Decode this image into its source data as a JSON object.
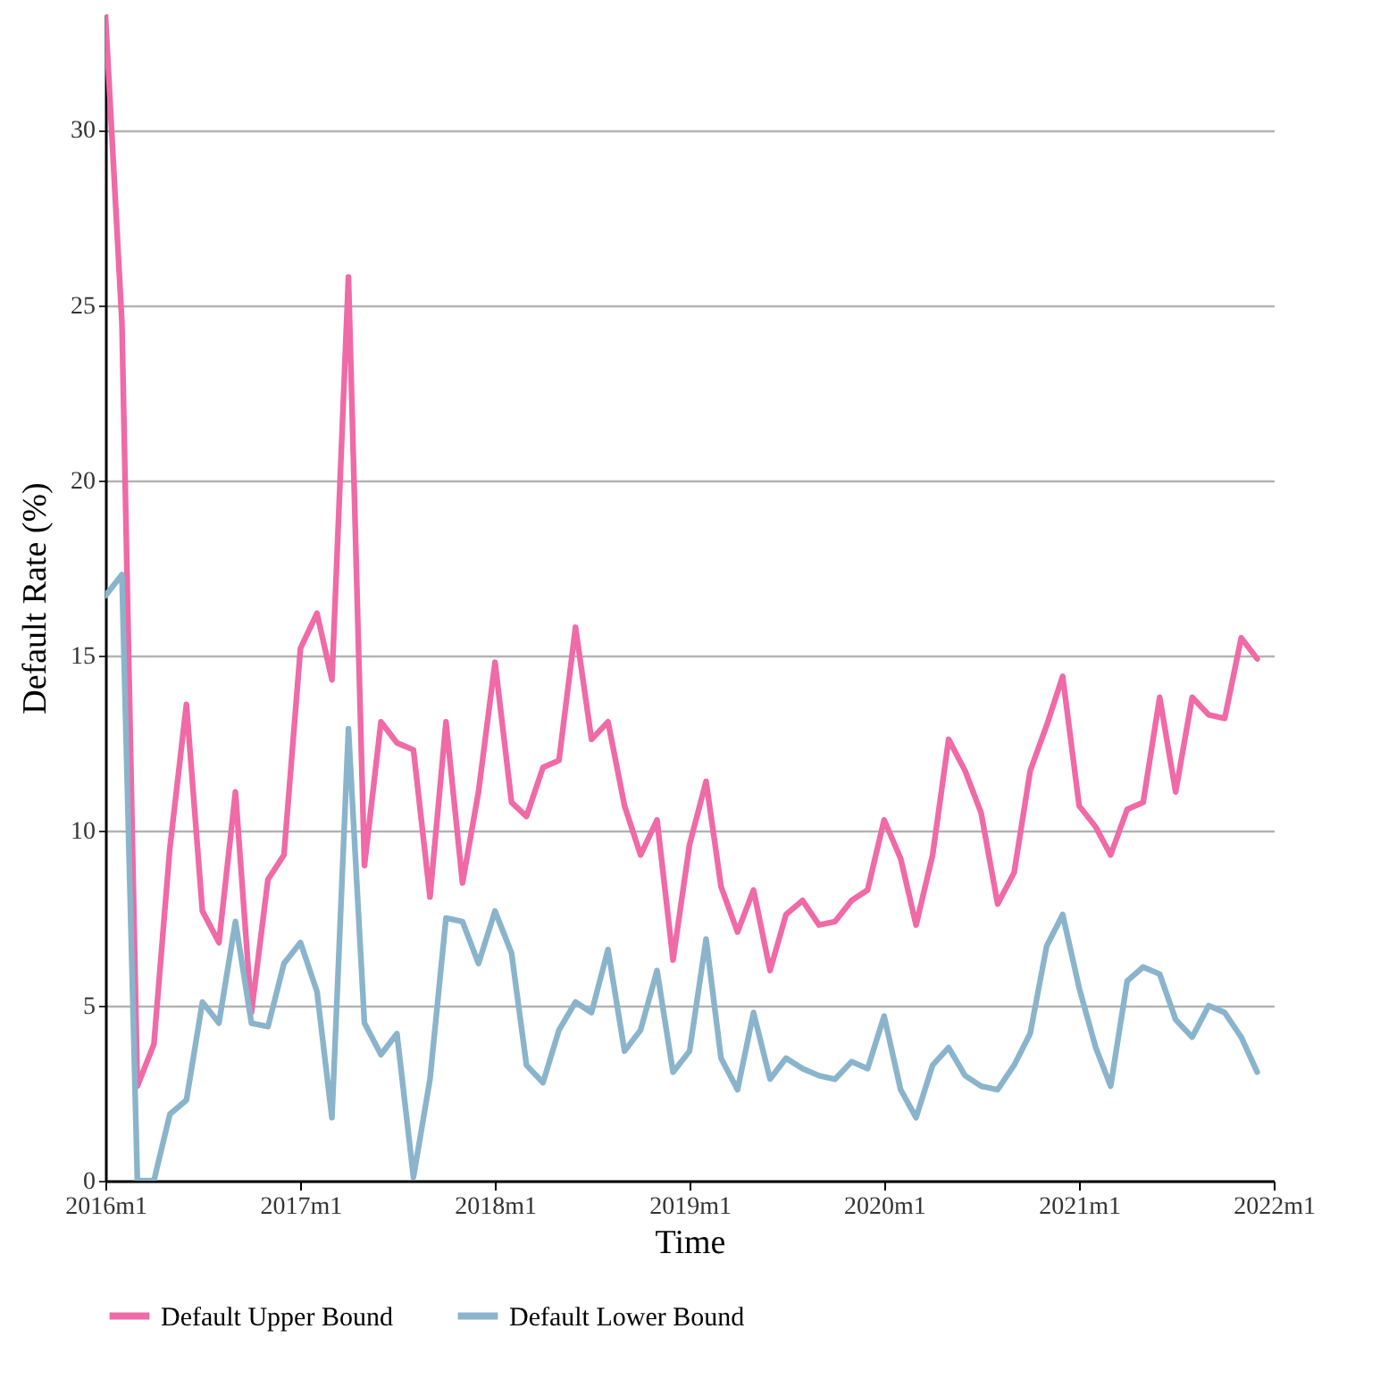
{
  "chart_data": {
    "type": "line",
    "xlabel": "Time",
    "ylabel": "Default Rate (%)",
    "x": [
      "2016-01",
      "2016-02",
      "2016-03",
      "2016-04",
      "2016-05",
      "2016-06",
      "2016-07",
      "2016-08",
      "2016-09",
      "2016-10",
      "2016-11",
      "2016-12",
      "2017-01",
      "2017-02",
      "2017-03",
      "2017-04",
      "2017-05",
      "2017-06",
      "2017-07",
      "2017-08",
      "2017-09",
      "2017-10",
      "2017-11",
      "2017-12",
      "2018-01",
      "2018-02",
      "2018-03",
      "2018-04",
      "2018-05",
      "2018-06",
      "2018-07",
      "2018-08",
      "2018-09",
      "2018-10",
      "2018-11",
      "2018-12",
      "2019-01",
      "2019-02",
      "2019-03",
      "2019-04",
      "2019-05",
      "2019-06",
      "2019-07",
      "2019-08",
      "2019-09",
      "2019-10",
      "2019-11",
      "2019-12",
      "2020-01",
      "2020-02",
      "2020-03",
      "2020-04",
      "2020-05",
      "2020-06",
      "2020-07",
      "2020-08",
      "2020-09",
      "2020-10",
      "2020-11",
      "2020-12",
      "2021-01",
      "2021-02",
      "2021-03",
      "2021-04",
      "2021-05",
      "2021-06",
      "2021-07",
      "2021-08",
      "2021-09",
      "2021-10",
      "2021-11",
      "2021-12"
    ],
    "xlim": [
      "2016-01",
      "2022-01"
    ],
    "xticks": [
      {
        "value": "2016-01",
        "label": "2016m1"
      },
      {
        "value": "2017-01",
        "label": "2017m1"
      },
      {
        "value": "2018-01",
        "label": "2018m1"
      },
      {
        "value": "2019-01",
        "label": "2019m1"
      },
      {
        "value": "2020-01",
        "label": "2020m1"
      },
      {
        "value": "2021-01",
        "label": "2021m1"
      },
      {
        "value": "2022-01",
        "label": "2022m1"
      }
    ],
    "ylim": [
      0,
      33.3
    ],
    "yticks": [
      0,
      5,
      10,
      15,
      20,
      25,
      30
    ],
    "series": [
      {
        "name": "Default Upper Bound",
        "color": "#ef6aa6",
        "values": [
          33.3,
          24.5,
          2.7,
          3.9,
          9.5,
          13.6,
          7.7,
          6.8,
          11.1,
          4.8,
          8.6,
          9.3,
          15.2,
          16.2,
          14.3,
          25.8,
          9.0,
          13.1,
          12.5,
          12.3,
          8.1,
          13.1,
          8.5,
          11.1,
          14.8,
          10.8,
          10.4,
          11.8,
          12.0,
          15.8,
          12.6,
          13.1,
          10.7,
          9.3,
          10.3,
          6.3,
          9.6,
          11.4,
          8.4,
          7.1,
          8.3,
          6.0,
          7.6,
          8.0,
          7.3,
          7.4,
          8.0,
          8.3,
          10.3,
          9.2,
          7.3,
          9.3,
          12.6,
          11.7,
          10.5,
          7.9,
          8.8,
          11.7,
          13.0,
          14.4,
          10.7,
          10.1,
          9.3,
          10.6,
          10.8,
          13.8,
          11.1,
          13.8,
          13.3,
          13.2,
          15.5,
          14.9
        ]
      },
      {
        "name": "Default Lower Bound",
        "color": "#8ab4cb",
        "values": [
          16.7,
          17.3,
          0,
          0,
          1.9,
          2.3,
          5.1,
          4.5,
          7.4,
          4.5,
          4.4,
          6.2,
          6.8,
          5.4,
          1.8,
          12.9,
          4.5,
          3.6,
          4.2,
          0.1,
          2.9,
          7.5,
          7.4,
          6.2,
          7.7,
          6.5,
          3.3,
          2.8,
          4.3,
          5.1,
          4.8,
          6.6,
          3.7,
          4.3,
          6.0,
          3.1,
          3.7,
          6.9,
          3.5,
          2.6,
          4.8,
          2.9,
          3.5,
          3.2,
          3.0,
          2.9,
          3.4,
          3.2,
          4.7,
          2.6,
          1.8,
          3.3,
          3.8,
          3.0,
          2.7,
          2.6,
          3.3,
          4.2,
          6.7,
          7.6,
          5.5,
          3.8,
          2.7,
          5.7,
          6.1,
          5.9,
          4.6,
          4.1,
          5.0,
          4.8,
          4.1,
          3.1
        ]
      }
    ],
    "grid": "y",
    "legend": "bottom",
    "line_style": "solid",
    "marker": "none"
  }
}
